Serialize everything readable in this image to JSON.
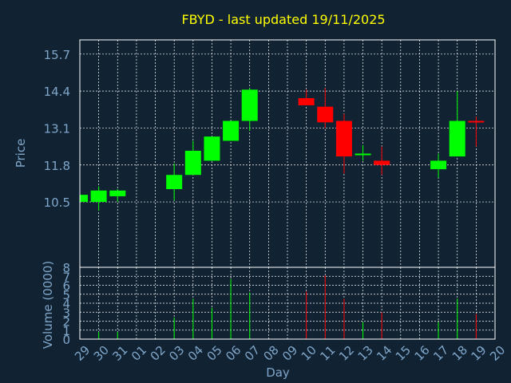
{
  "colors": {
    "background": "#112233",
    "plot_frame": "#ffffff",
    "grid": "#ffffff",
    "title": "#ffff00",
    "axis_text": "#7fa6c9",
    "up": "#00ff00",
    "down": "#ff0000"
  },
  "chart_data": [
    {
      "type": "candlestick",
      "title": "FBYD - last updated 19/11/2025",
      "xlabel": "",
      "ylabel": "Price",
      "ylim": [
        8.2,
        16.2
      ],
      "yticks": [
        10.5,
        11.8,
        13.1,
        14.4,
        15.7
      ],
      "ytick_labels": [
        "10.5",
        "11.8",
        "13.1",
        "14.4",
        "15.7"
      ],
      "grid": true,
      "candles": [
        {
          "day": "29",
          "open": 10.5,
          "high": 10.75,
          "low": 10.45,
          "close": 10.75
        },
        {
          "day": "30",
          "open": 10.5,
          "high": 11.05,
          "low": 10.2,
          "close": 10.9
        },
        {
          "day": "31",
          "open": 10.7,
          "high": 10.95,
          "low": 10.5,
          "close": 10.9
        },
        {
          "day": "03",
          "open": 10.95,
          "high": 11.85,
          "low": 10.55,
          "close": 11.45
        },
        {
          "day": "04",
          "open": 11.45,
          "high": 12.65,
          "low": 11.45,
          "close": 12.3
        },
        {
          "day": "05",
          "open": 11.95,
          "high": 12.8,
          "low": 11.95,
          "close": 12.8
        },
        {
          "day": "06",
          "open": 12.65,
          "high": 13.35,
          "low": 12.65,
          "close": 13.35
        },
        {
          "day": "07",
          "open": 13.35,
          "high": 14.5,
          "low": 13.0,
          "close": 14.45
        },
        {
          "day": "10",
          "open": 14.15,
          "high": 14.45,
          "low": 13.9,
          "close": 13.9
        },
        {
          "day": "11",
          "open": 13.85,
          "high": 14.5,
          "low": 13.1,
          "close": 13.3
        },
        {
          "day": "12",
          "open": 13.35,
          "high": 13.6,
          "low": 11.5,
          "close": 12.1
        },
        {
          "day": "13",
          "open": 12.15,
          "high": 12.5,
          "low": 11.95,
          "close": 12.2
        },
        {
          "day": "14",
          "open": 11.95,
          "high": 12.45,
          "low": 11.45,
          "close": 11.8
        },
        {
          "day": "17",
          "open": 11.65,
          "high": 12.2,
          "low": 11.35,
          "close": 11.95
        },
        {
          "day": "18",
          "open": 12.1,
          "high": 14.4,
          "low": 12.1,
          "close": 13.35
        },
        {
          "day": "19",
          "open": 13.35,
          "high": 13.5,
          "low": 12.45,
          "close": 13.3
        }
      ]
    },
    {
      "type": "bar",
      "title": "",
      "xlabel": "Day",
      "ylabel": "Volume (0000)",
      "ylim": [
        0,
        8
      ],
      "yticks": [
        0,
        1,
        2,
        3,
        4,
        5,
        6,
        7,
        8
      ],
      "ytick_labels": [
        "0",
        "1",
        "2",
        "3",
        "4",
        "5",
        "6",
        "7",
        "8"
      ],
      "categories": [
        "29",
        "30",
        "31",
        "01",
        "02",
        "03",
        "04",
        "05",
        "06",
        "07",
        "08",
        "09",
        "10",
        "11",
        "12",
        "13",
        "14",
        "15",
        "16",
        "17",
        "18",
        "19",
        "20"
      ],
      "grid": true,
      "volumes": [
        {
          "day": "29",
          "value": 0.1,
          "direction": "up"
        },
        {
          "day": "30",
          "value": 0.8,
          "direction": "up"
        },
        {
          "day": "31",
          "value": 0.8,
          "direction": "up"
        },
        {
          "day": "03",
          "value": 2.4,
          "direction": "up"
        },
        {
          "day": "04",
          "value": 4.5,
          "direction": "up"
        },
        {
          "day": "05",
          "value": 3.5,
          "direction": "up"
        },
        {
          "day": "06",
          "value": 6.7,
          "direction": "up"
        },
        {
          "day": "07",
          "value": 5.2,
          "direction": "up"
        },
        {
          "day": "10",
          "value": 5.3,
          "direction": "down"
        },
        {
          "day": "11",
          "value": 7.1,
          "direction": "down"
        },
        {
          "day": "12",
          "value": 4.5,
          "direction": "down"
        },
        {
          "day": "13",
          "value": 1.9,
          "direction": "up"
        },
        {
          "day": "14",
          "value": 3.0,
          "direction": "down"
        },
        {
          "day": "17",
          "value": 1.9,
          "direction": "up"
        },
        {
          "day": "18",
          "value": 4.5,
          "direction": "up"
        },
        {
          "day": "19",
          "value": 2.8,
          "direction": "down"
        }
      ]
    }
  ]
}
